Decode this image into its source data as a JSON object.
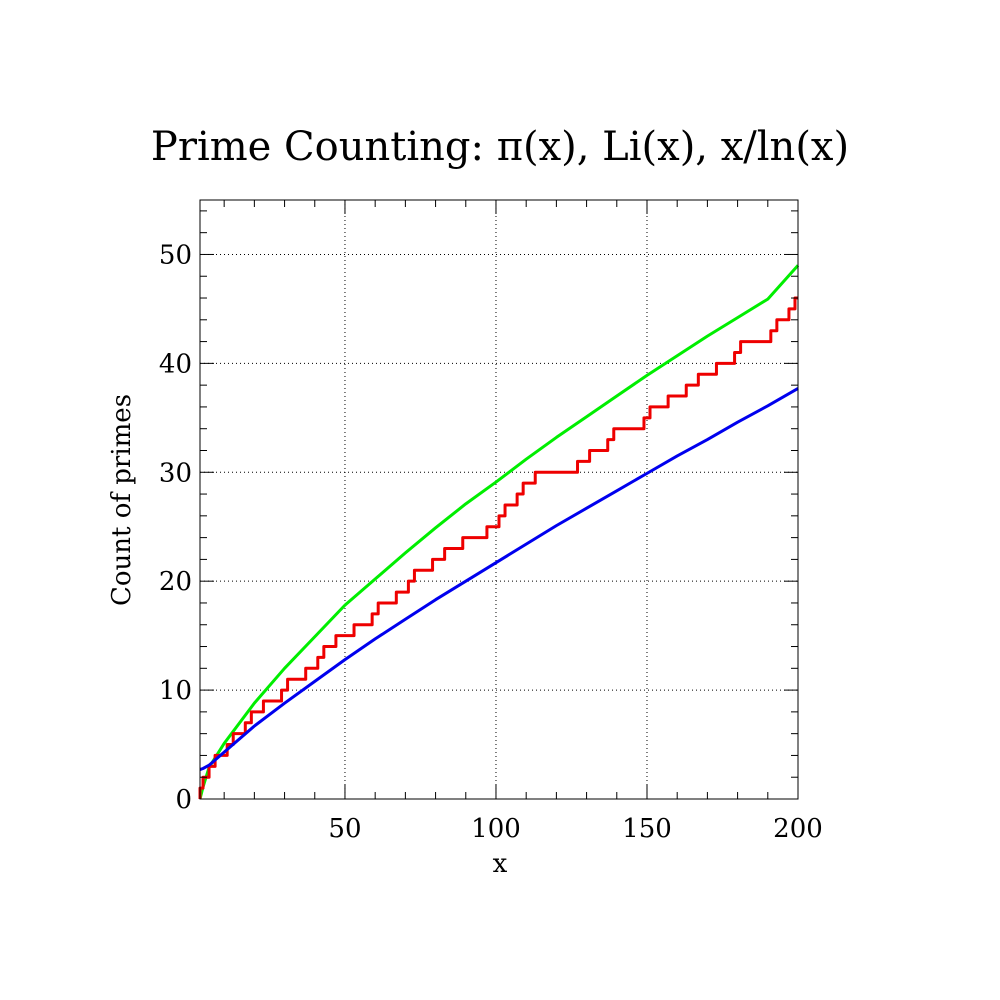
{
  "chart_data": {
    "type": "line",
    "title": "Prime Counting: π(x), Li(x), x/ln(x)",
    "xlabel": "x",
    "ylabel": "Count of primes",
    "xlim": [
      2,
      200
    ],
    "ylim": [
      0,
      55
    ],
    "x_ticks": [
      50,
      100,
      150,
      200
    ],
    "y_ticks": [
      0,
      10,
      20,
      30,
      40,
      50
    ],
    "grid": true,
    "grid_style": "dotted",
    "legend": "none",
    "series": [
      {
        "color": "#00ee00",
        "style": "smooth",
        "x": [
          2,
          3,
          5,
          10,
          20,
          30,
          40,
          50,
          60,
          70,
          80,
          90,
          100,
          110,
          120,
          130,
          140,
          150,
          160,
          170,
          180,
          190,
          200
        ],
        "y": [
          0,
          1.1,
          2.9,
          5.1,
          8.8,
          12.0,
          14.9,
          17.8,
          20.2,
          22.6,
          24.9,
          27.1,
          29.1,
          31.2,
          33.2,
          35.1,
          37.0,
          38.9,
          40.7,
          42.5,
          44.2,
          45.9,
          49.0
        ]
      },
      {
        "color": "#ee0000",
        "style": "step",
        "x": [
          2,
          3,
          5,
          7,
          11,
          13,
          17,
          19,
          23,
          29,
          31,
          37,
          41,
          43,
          47,
          53,
          59,
          61,
          67,
          71,
          73,
          79,
          83,
          89,
          97,
          101,
          103,
          107,
          109,
          113,
          127,
          131,
          137,
          139,
          149,
          151,
          157,
          163,
          167,
          173,
          179,
          181,
          191,
          193,
          197,
          199
        ],
        "y": [
          1,
          2,
          3,
          4,
          5,
          6,
          7,
          8,
          9,
          10,
          11,
          12,
          13,
          14,
          15,
          16,
          17,
          18,
          19,
          20,
          21,
          22,
          23,
          24,
          25,
          26,
          27,
          28,
          29,
          30,
          31,
          32,
          33,
          34,
          35,
          36,
          37,
          38,
          39,
          40,
          41,
          42,
          43,
          44,
          45,
          46
        ]
      },
      {
        "color": "#0000ee",
        "style": "smooth",
        "x": [
          2,
          3,
          5,
          10,
          20,
          30,
          40,
          50,
          60,
          70,
          80,
          90,
          100,
          110,
          120,
          130,
          140,
          150,
          160,
          170,
          180,
          190,
          200
        ],
        "y": [
          2.7,
          2.8,
          3.1,
          4.3,
          6.7,
          8.8,
          10.8,
          12.8,
          14.7,
          16.5,
          18.3,
          20.0,
          21.7,
          23.4,
          25.1,
          26.7,
          28.3,
          29.9,
          31.5,
          33.0,
          34.6,
          36.1,
          37.7
        ]
      }
    ]
  }
}
